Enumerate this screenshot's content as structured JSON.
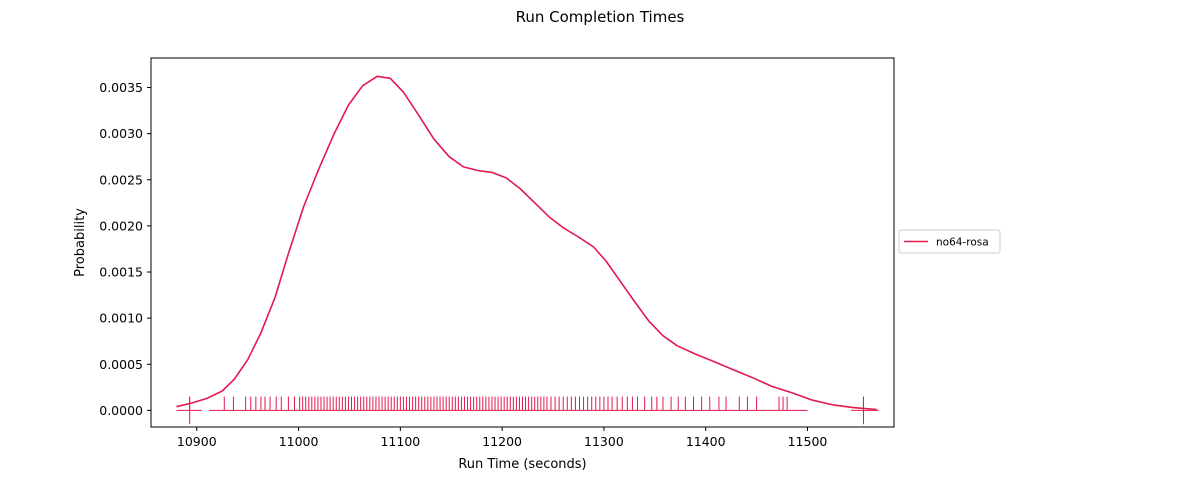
{
  "chart_data": {
    "type": "line",
    "title": "Run Completion Times",
    "xlabel": "Run Time (seconds)",
    "ylabel": "Probability",
    "xlim": [
      10855,
      11585
    ],
    "ylim": [
      -0.00018,
      0.00382
    ],
    "xticks": [
      10900,
      11000,
      11100,
      11200,
      11300,
      11400,
      11500
    ],
    "xtick_labels": [
      "10900",
      "11000",
      "11100",
      "11200",
      "11300",
      "11400",
      "11500"
    ],
    "yticks": [
      0,
      0.0005,
      0.001,
      0.0015,
      0.002,
      0.0025,
      0.003,
      0.0035
    ],
    "ytick_labels": [
      "0.0000",
      "0.0005",
      "0.0010",
      "0.0015",
      "0.0020",
      "0.0025",
      "0.0030",
      "0.0035"
    ],
    "grid": false,
    "legend_position": "outside-right",
    "series": [
      {
        "name": "no64-rosa",
        "color": "#e31a4e",
        "x": [
          10880,
          10895,
          10910,
          10925,
          10937,
          10950,
          10963,
          10977,
          10990,
          11005,
          11020,
          11035,
          11049,
          11063,
          11077,
          11090,
          11103,
          11118,
          11133,
          11148,
          11162,
          11176,
          11190,
          11204,
          11218,
          11232,
          11246,
          11260,
          11275,
          11290,
          11302,
          11316,
          11330,
          11344,
          11358,
          11372,
          11390,
          11408,
          11425,
          11445,
          11465,
          11485,
          11505,
          11525,
          11545,
          11568
        ],
        "y": [
          4e-05,
          8e-05,
          0.00013,
          0.00021,
          0.00034,
          0.00055,
          0.00084,
          0.00123,
          0.0017,
          0.00221,
          0.00262,
          0.003,
          0.00331,
          0.00352,
          0.00362,
          0.0036,
          0.00345,
          0.0032,
          0.00294,
          0.00275,
          0.00264,
          0.0026,
          0.00258,
          0.00252,
          0.0024,
          0.00225,
          0.0021,
          0.00198,
          0.00188,
          0.00177,
          0.00162,
          0.0014,
          0.00118,
          0.00097,
          0.00081,
          0.0007,
          0.00061,
          0.00053,
          0.00045,
          0.00036,
          0.00026,
          0.00019,
          0.00011,
          6e-05,
          3e-05,
          1e-05
        ]
      }
    ],
    "rug": {
      "color": "#e31a4e",
      "values": [
        10893,
        10927,
        10936,
        10948,
        10953,
        10958,
        10963,
        10967,
        10972,
        10978,
        10983,
        10990,
        10996,
        11001,
        11004,
        11007,
        11010,
        11013,
        11016,
        11019,
        11022,
        11025,
        11028,
        11031,
        11034,
        11037,
        11040,
        11043,
        11046,
        11049,
        11052,
        11055,
        11058,
        11061,
        11064,
        11067,
        11070,
        11073,
        11076,
        11079,
        11082,
        11085,
        11088,
        11091,
        11094,
        11097,
        11100,
        11103,
        11106,
        11109,
        11112,
        11115,
        11118,
        11121,
        11124,
        11127,
        11130,
        11133,
        11136,
        11139,
        11142,
        11145,
        11148,
        11151,
        11154,
        11157,
        11160,
        11163,
        11166,
        11169,
        11172,
        11175,
        11178,
        11181,
        11184,
        11187,
        11190,
        11193,
        11196,
        11199,
        11202,
        11205,
        11208,
        11211,
        11214,
        11217,
        11220,
        11223,
        11226,
        11229,
        11232,
        11235,
        11238,
        11241,
        11244,
        11248,
        11252,
        11256,
        11260,
        11264,
        11268,
        11272,
        11276,
        11280,
        11284,
        11288,
        11292,
        11296,
        11300,
        11304,
        11308,
        11313,
        11318,
        11323,
        11328,
        11333,
        11340,
        11347,
        11352,
        11358,
        11366,
        11373,
        11380,
        11388,
        11396,
        11404,
        11413,
        11420,
        11433,
        11441,
        11450,
        11472,
        11476,
        11480,
        11555
      ]
    },
    "rug_stubs": [
      {
        "x": 10893,
        "y_top": 0.00015
      },
      {
        "x": 11555,
        "y_top": 0.00015
      }
    ],
    "rug_baselines": [
      [
        10880,
        10905
      ],
      [
        10912,
        11500
      ],
      [
        11543,
        11570
      ]
    ]
  }
}
